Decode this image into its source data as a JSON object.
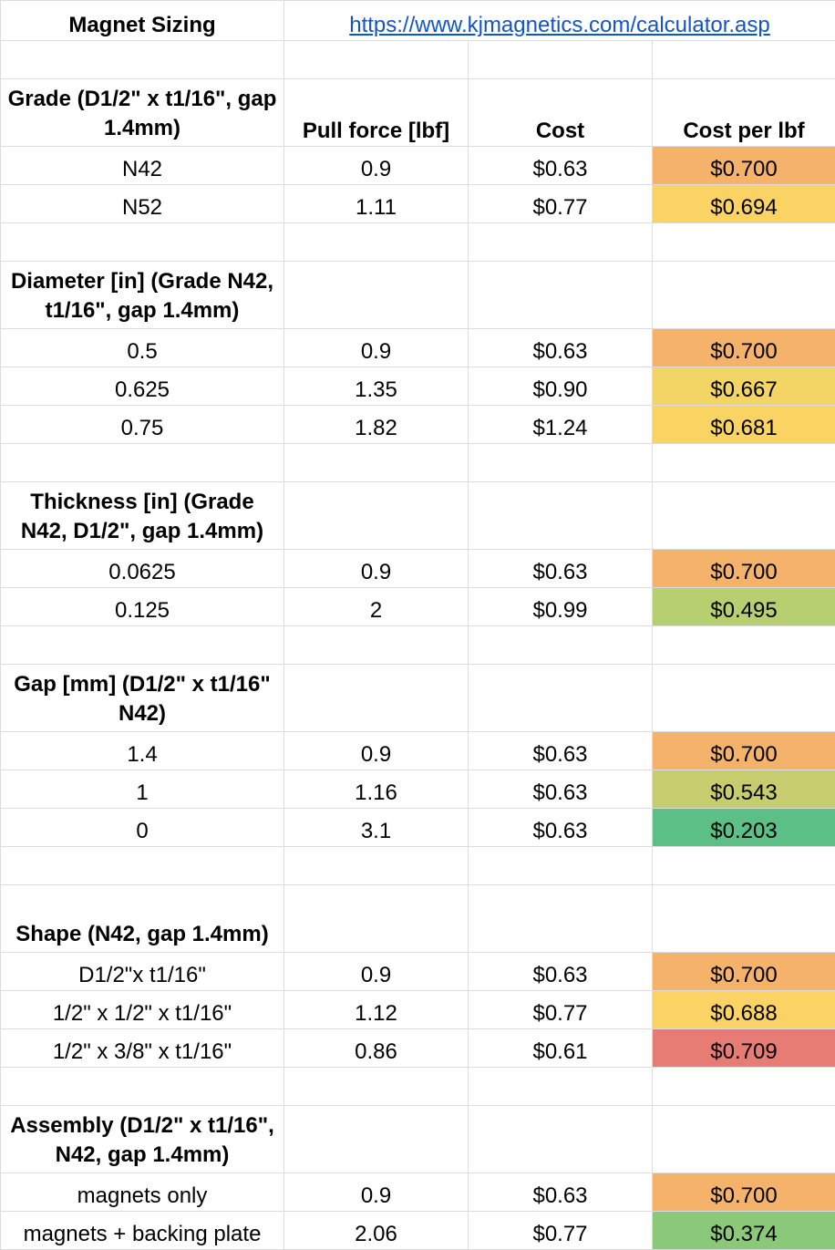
{
  "sheet": {
    "title": "Magnet Sizing",
    "link": "https://www.kjmagnetics.com/calculator.asp",
    "headers": {
      "pull_force": "Pull force [lbf]",
      "cost": "Cost",
      "cost_per_lbf": "Cost per lbf"
    },
    "sections": [
      {
        "label": "Grade (D1/2\" x t1/16\", gap 1.4mm)",
        "show_headers": true,
        "rows": [
          {
            "name": "N42",
            "pull": "0.9",
            "cost": "$0.63",
            "cpl": "$0.700",
            "color": "#f5b26b"
          },
          {
            "name": "N52",
            "pull": "1.11",
            "cost": "$0.77",
            "cpl": "$0.694",
            "color": "#fbd364"
          }
        ]
      },
      {
        "label": "Diameter [in] (Grade N42, t1/16\", gap 1.4mm)",
        "rows": [
          {
            "name": "0.5",
            "pull": "0.9",
            "cost": "$0.63",
            "cpl": "$0.700",
            "color": "#f5b26b"
          },
          {
            "name": "0.625",
            "pull": "1.35",
            "cost": "$0.90",
            "cpl": "$0.667",
            "color": "#f2d565"
          },
          {
            "name": "0.75",
            "pull": "1.82",
            "cost": "$1.24",
            "cpl": "$0.681",
            "color": "#f9d463"
          }
        ]
      },
      {
        "label": "Thickness [in] (Grade N42, D1/2\", gap 1.4mm)",
        "rows": [
          {
            "name": "0.0625",
            "pull": "0.9",
            "cost": "$0.63",
            "cpl": "$0.700",
            "color": "#f5b26b"
          },
          {
            "name": "0.125",
            "pull": "2",
            "cost": "$0.99",
            "cpl": "$0.495",
            "color": "#b7cf6f"
          }
        ]
      },
      {
        "label": "Gap [mm] (D1/2\" x t1/16\" N42)",
        "rows": [
          {
            "name": "1.4",
            "pull": "0.9",
            "cost": "$0.63",
            "cpl": "$0.700",
            "color": "#f5b26b"
          },
          {
            "name": "1",
            "pull": "1.16",
            "cost": "$0.63",
            "cpl": "$0.543",
            "color": "#c7cd6f"
          },
          {
            "name": "0",
            "pull": "3.1",
            "cost": "$0.63",
            "cpl": "$0.203",
            "color": "#5cbf85"
          }
        ]
      },
      {
        "label": "Shape (N42, gap 1.4mm)",
        "rows": [
          {
            "name": "D1/2\"x t1/16\"",
            "pull": "0.9",
            "cost": "$0.63",
            "cpl": "$0.700",
            "color": "#f5b26b"
          },
          {
            "name": "1/2\" x 1/2\" x t1/16\"",
            "pull": "1.12",
            "cost": "$0.77",
            "cpl": "$0.688",
            "color": "#fbd364"
          },
          {
            "name": "1/2\" x 3/8\" x t1/16\"",
            "pull": "0.86",
            "cost": "$0.61",
            "cpl": "$0.709",
            "color": "#e77c74"
          }
        ]
      },
      {
        "label": "Assembly (D1/2\" x t1/16\", N42, gap 1.4mm)",
        "rows": [
          {
            "name": "magnets only",
            "pull": "0.9",
            "cost": "$0.63",
            "cpl": "$0.700",
            "color": "#f5b26b"
          },
          {
            "name": "magnets + backing plate",
            "pull": "2.06",
            "cost": "$0.77",
            "cpl": "$0.374",
            "color": "#8cc879"
          }
        ]
      }
    ]
  }
}
